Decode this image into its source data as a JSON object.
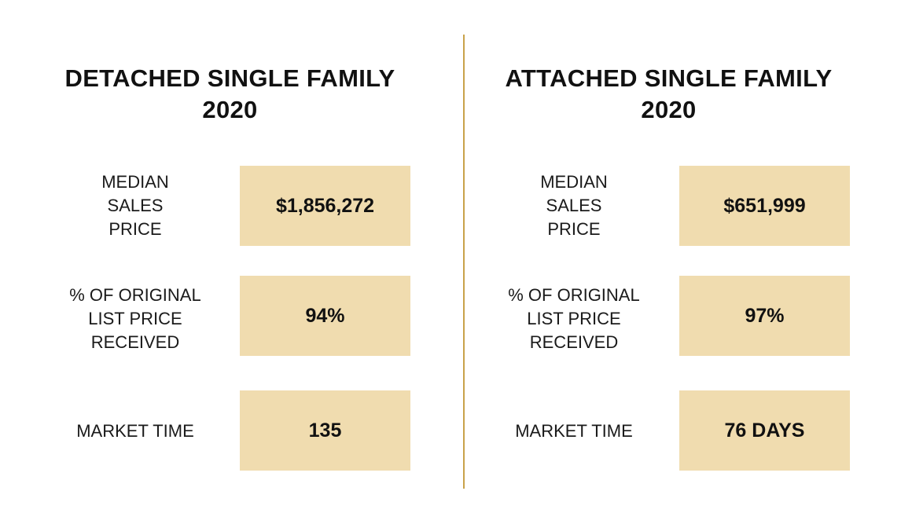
{
  "panels": {
    "detached": {
      "title_line1": "DETACHED SINGLE FAMILY",
      "title_line2": "2020",
      "stats": [
        {
          "label": "MEDIAN\nSALES\nPRICE",
          "value": "$1,856,272"
        },
        {
          "label": "% OF ORIGINAL\nLIST PRICE\nRECEIVED",
          "value": "94%"
        },
        {
          "label": "MARKET TIME",
          "value": "135"
        }
      ]
    },
    "attached": {
      "title_line1": "ATTACHED SINGLE FAMILY",
      "title_line2": "2020",
      "stats": [
        {
          "label": "MEDIAN\nSALES\nPRICE",
          "value": "$651,999"
        },
        {
          "label": "% OF ORIGINAL\nLIST PRICE\nRECEIVED",
          "value": "97%"
        },
        {
          "label": "MARKET TIME",
          "value": "76 DAYS"
        }
      ]
    }
  },
  "colors": {
    "box_fill": "#f0dcaf",
    "divider": "#c9a24a",
    "text": "#1a1a1a"
  }
}
